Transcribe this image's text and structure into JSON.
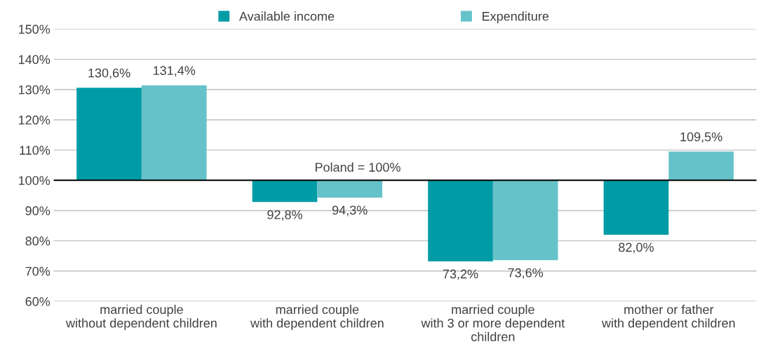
{
  "chart_data": {
    "type": "bar",
    "categories": [
      "married couple\nwithout dependent children",
      "married couple\nwith dependent children",
      "married couple\nwith 3 or more dependent\nchildren",
      "mother or father\nwith dependent children"
    ],
    "series": [
      {
        "name": "Available income",
        "color": "#009ca6",
        "base": [
          100,
          100,
          100,
          100
        ],
        "values": [
          30.6,
          -7.2,
          -26.8,
          -18.0
        ],
        "value_labels": [
          "130,6%",
          "92,8%",
          "73,2%",
          "82,0%"
        ]
      },
      {
        "name": "Expenditure",
        "color": "#66c2c9",
        "base": [
          100,
          100,
          100,
          100
        ],
        "values": [
          31.4,
          -5.7,
          -26.4,
          9.5
        ],
        "value_labels": [
          "131,4%",
          "94,3%",
          "73,6%",
          "109,5%"
        ]
      }
    ],
    "ylim": [
      60,
      150
    ],
    "yticks": [
      {
        "value": 60,
        "label": "60%"
      },
      {
        "value": 70,
        "label": "70%"
      },
      {
        "value": 80,
        "label": "80%"
      },
      {
        "value": 90,
        "label": "90%"
      },
      {
        "value": 100,
        "label": "100%"
      },
      {
        "value": 110,
        "label": "110%"
      },
      {
        "value": 120,
        "label": "120%"
      },
      {
        "value": 130,
        "label": "130%"
      },
      {
        "value": 140,
        "label": "140%"
      },
      {
        "value": 150,
        "label": "150%"
      }
    ],
    "ref_lines": [
      {
        "axis": "y",
        "value": 100,
        "label": "Poland = 100%",
        "color": "#000000"
      }
    ],
    "grid": "y",
    "legend": "top"
  }
}
